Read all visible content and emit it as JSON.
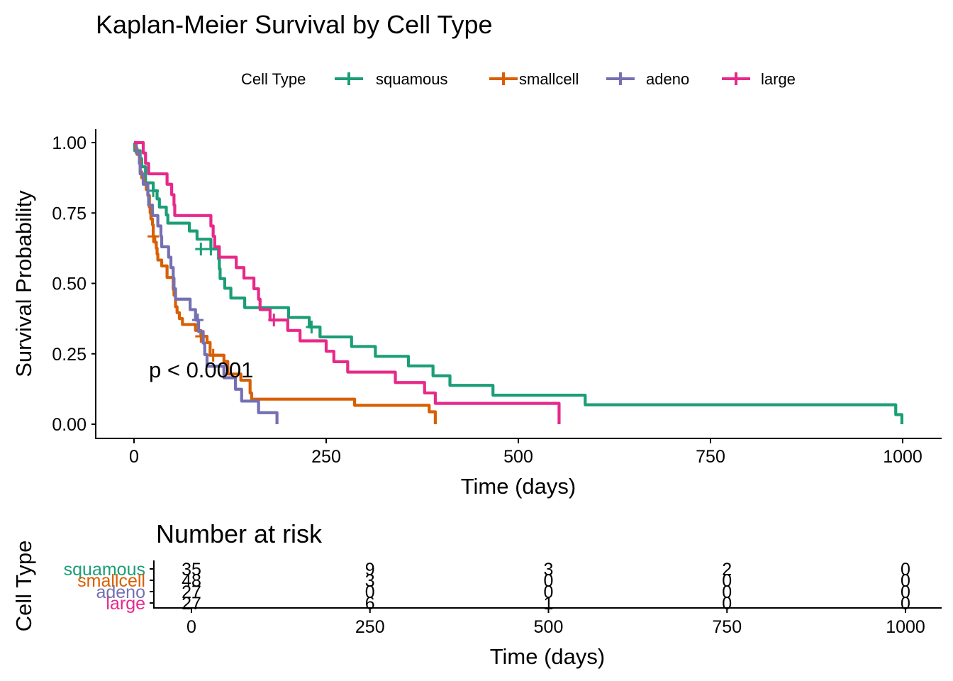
{
  "chart_data": {
    "type": "line",
    "title": "Kaplan-Meier Survival by Cell Type",
    "xlabel": "Time (days)",
    "ylabel": "Survival Probability",
    "xlim": [
      0,
      1000
    ],
    "ylim": [
      0,
      1
    ],
    "x_ticks": [
      "0",
      "250",
      "500",
      "750",
      "1000"
    ],
    "y_ticks": [
      "0.00",
      "0.25",
      "0.50",
      "0.75",
      "1.00"
    ],
    "grid": false,
    "legend": {
      "title": "Cell Type",
      "position": "top",
      "entries": [
        "squamous",
        "smallcell",
        "adeno",
        "large"
      ]
    },
    "annotation": "p < 0.0001",
    "series": [
      {
        "name": "squamous",
        "color": "#1B9E77",
        "steps": [
          [
            0,
            1.0
          ],
          [
            1,
            0.971
          ],
          [
            8,
            0.943
          ],
          [
            10,
            0.914
          ],
          [
            15,
            0.857
          ],
          [
            25,
            0.829
          ],
          [
            30,
            0.8
          ],
          [
            33,
            0.771
          ],
          [
            42,
            0.743
          ],
          [
            44,
            0.714
          ],
          [
            72,
            0.686
          ],
          [
            82,
            0.657
          ],
          [
            100,
            0.622
          ],
          [
            110,
            0.587
          ],
          [
            111,
            0.552
          ],
          [
            112,
            0.517
          ],
          [
            118,
            0.483
          ],
          [
            126,
            0.448
          ],
          [
            144,
            0.414
          ],
          [
            201,
            0.379
          ],
          [
            228,
            0.345
          ],
          [
            242,
            0.31
          ],
          [
            283,
            0.276
          ],
          [
            314,
            0.241
          ],
          [
            357,
            0.207
          ],
          [
            389,
            0.172
          ],
          [
            411,
            0.138
          ],
          [
            467,
            0.103
          ],
          [
            587,
            0.069
          ],
          [
            991,
            0.034
          ],
          [
            999,
            0.0
          ]
        ],
        "censored": [
          [
            25,
            0.829
          ],
          [
            87,
            0.622
          ],
          [
            100,
            0.622
          ],
          [
            231,
            0.345
          ]
        ]
      },
      {
        "name": "smallcell",
        "color": "#D95F02",
        "steps": [
          [
            0,
            1.0
          ],
          [
            2,
            0.979
          ],
          [
            4,
            0.958
          ],
          [
            7,
            0.938
          ],
          [
            8,
            0.896
          ],
          [
            10,
            0.875
          ],
          [
            13,
            0.854
          ],
          [
            16,
            0.833
          ],
          [
            18,
            0.812
          ],
          [
            20,
            0.771
          ],
          [
            21,
            0.75
          ],
          [
            22,
            0.729
          ],
          [
            24,
            0.708
          ],
          [
            25,
            0.667
          ],
          [
            27,
            0.646
          ],
          [
            29,
            0.625
          ],
          [
            30,
            0.604
          ],
          [
            31,
            0.583
          ],
          [
            36,
            0.562
          ],
          [
            43,
            0.521
          ],
          [
            51,
            0.479
          ],
          [
            52,
            0.458
          ],
          [
            54,
            0.417
          ],
          [
            56,
            0.396
          ],
          [
            59,
            0.375
          ],
          [
            63,
            0.354
          ],
          [
            80,
            0.333
          ],
          [
            87,
            0.312
          ],
          [
            95,
            0.29
          ],
          [
            99,
            0.245
          ],
          [
            117,
            0.223
          ],
          [
            122,
            0.178
          ],
          [
            139,
            0.156
          ],
          [
            151,
            0.111
          ],
          [
            153,
            0.089
          ],
          [
            287,
            0.067
          ],
          [
            384,
            0.044
          ],
          [
            392,
            0.0
          ]
        ],
        "censored": [
          [
            25,
            0.667
          ],
          [
            87,
            0.312
          ],
          [
            103,
            0.245
          ]
        ]
      },
      {
        "name": "adeno",
        "color": "#7570B3",
        "steps": [
          [
            0,
            1.0
          ],
          [
            3,
            0.963
          ],
          [
            7,
            0.926
          ],
          [
            8,
            0.889
          ],
          [
            12,
            0.852
          ],
          [
            18,
            0.815
          ],
          [
            19,
            0.778
          ],
          [
            24,
            0.741
          ],
          [
            31,
            0.704
          ],
          [
            35,
            0.667
          ],
          [
            36,
            0.63
          ],
          [
            45,
            0.593
          ],
          [
            48,
            0.556
          ],
          [
            51,
            0.519
          ],
          [
            52,
            0.481
          ],
          [
            54,
            0.444
          ],
          [
            73,
            0.407
          ],
          [
            80,
            0.37
          ],
          [
            84,
            0.329
          ],
          [
            90,
            0.288
          ],
          [
            92,
            0.247
          ],
          [
            95,
            0.206
          ],
          [
            117,
            0.165
          ],
          [
            132,
            0.124
          ],
          [
            140,
            0.082
          ],
          [
            162,
            0.041
          ],
          [
            186,
            0.0
          ]
        ],
        "censored": [
          [
            83,
            0.37
          ]
        ]
      },
      {
        "name": "large",
        "color": "#E7298A",
        "steps": [
          [
            0,
            1.0
          ],
          [
            12,
            0.963
          ],
          [
            15,
            0.926
          ],
          [
            19,
            0.889
          ],
          [
            43,
            0.852
          ],
          [
            49,
            0.815
          ],
          [
            52,
            0.778
          ],
          [
            53,
            0.741
          ],
          [
            100,
            0.704
          ],
          [
            103,
            0.667
          ],
          [
            105,
            0.63
          ],
          [
            111,
            0.593
          ],
          [
            133,
            0.556
          ],
          [
            143,
            0.519
          ],
          [
            156,
            0.481
          ],
          [
            162,
            0.444
          ],
          [
            164,
            0.407
          ],
          [
            177,
            0.37
          ],
          [
            200,
            0.333
          ],
          [
            216,
            0.296
          ],
          [
            250,
            0.259
          ],
          [
            260,
            0.222
          ],
          [
            278,
            0.185
          ],
          [
            340,
            0.148
          ],
          [
            378,
            0.111
          ],
          [
            392,
            0.074
          ],
          [
            553,
            0.037
          ],
          [
            553,
            0.0
          ]
        ],
        "censored": [
          [
            182,
            0.37
          ]
        ]
      }
    ]
  },
  "risk_table": {
    "title": "Number at risk",
    "ylabel": "Cell Type",
    "xlabel": "Time (days)",
    "x_ticks": [
      "0",
      "250",
      "500",
      "750",
      "1000"
    ],
    "time_points": [
      0,
      250,
      500,
      750,
      1000
    ],
    "strata": [
      {
        "name": "squamous",
        "color": "#1B9E77",
        "counts": [
          "35",
          "9",
          "3",
          "2",
          "0"
        ]
      },
      {
        "name": "smallcell",
        "color": "#D95F02",
        "counts": [
          "48",
          "3",
          "0",
          "0",
          "0"
        ]
      },
      {
        "name": "adeno",
        "color": "#7570B3",
        "counts": [
          "27",
          "0",
          "0",
          "0",
          "0"
        ]
      },
      {
        "name": "large",
        "color": "#E7298A",
        "counts": [
          "27",
          "6",
          "1",
          "0",
          "0"
        ]
      }
    ]
  }
}
